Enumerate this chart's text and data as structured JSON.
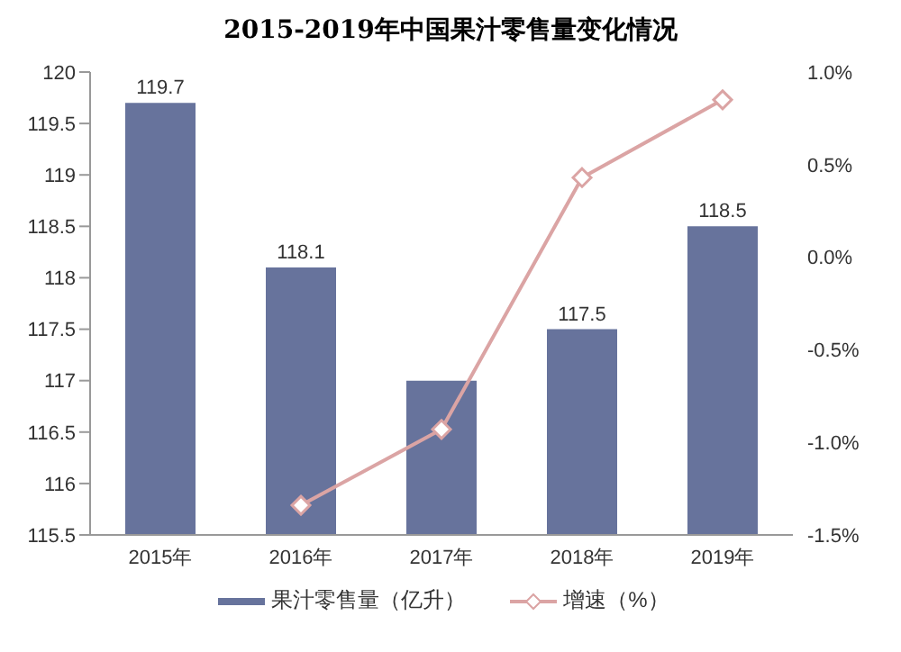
{
  "chart_data": {
    "type": "bar",
    "title": "2015-2019年中国果汁零售量变化情况",
    "categories": [
      "2015年",
      "2016年",
      "2017年",
      "2018年",
      "2019年"
    ],
    "series": [
      {
        "name": "果汁零售量（亿升）",
        "color": "#67739c",
        "values": [
          119.7,
          118.1,
          117,
          117.5,
          118.5
        ],
        "value_labels": [
          "119.7",
          "118.1",
          null,
          "117.5",
          "118.5"
        ]
      },
      {
        "name": "增速（%）",
        "type": "line",
        "axis": "y2",
        "color": "#dba4a4",
        "marker": "diamond",
        "values": [
          null,
          -1.34,
          -0.93,
          0.43,
          0.85
        ]
      }
    ],
    "ylim": [
      115.5,
      120
    ],
    "yticks": [
      115.5,
      116,
      116.5,
      117,
      117.5,
      118,
      118.5,
      119,
      119.5,
      120
    ],
    "y2lim": [
      -1.5,
      1.0
    ],
    "y2ticks": [
      {
        "value": -1.5,
        "label": "-1.5%"
      },
      {
        "value": -1.0,
        "label": "-1.0%"
      },
      {
        "value": -0.5,
        "label": "-0.5%"
      },
      {
        "value": 0,
        "label": "0.0%"
      },
      {
        "value": 0.5,
        "label": "0.5%"
      },
      {
        "value": 1.0,
        "label": "1.0%"
      }
    ],
    "grid": false,
    "legend": "bottom"
  }
}
